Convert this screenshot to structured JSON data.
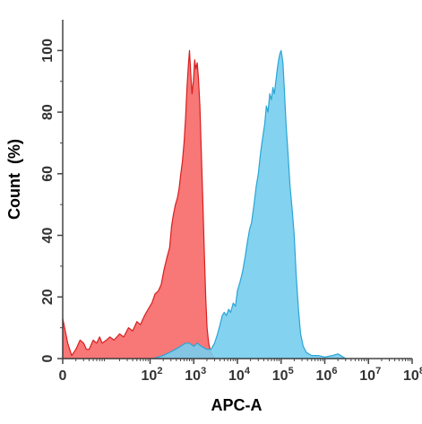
{
  "chart_data": {
    "type": "area",
    "title": "",
    "xlabel": "APC-A",
    "ylabel": "Count  (%)",
    "x_scale": "log",
    "xlim": [
      1,
      100000000
    ],
    "ylim": [
      0,
      110
    ],
    "x_ticks": [
      {
        "value": 1,
        "base": "0",
        "exp": ""
      },
      {
        "value": 100,
        "base": "10",
        "exp": "2"
      },
      {
        "value": 1000,
        "base": "10",
        "exp": "3"
      },
      {
        "value": 10000,
        "base": "10",
        "exp": "4"
      },
      {
        "value": 100000,
        "base": "10",
        "exp": "5"
      },
      {
        "value": 1000000,
        "base": "10",
        "exp": "6"
      },
      {
        "value": 10000000,
        "base": "10",
        "exp": "7"
      },
      {
        "value": 100000000,
        "base": "10",
        "exp": "8"
      }
    ],
    "y_ticks": [
      0,
      20,
      40,
      60,
      80,
      100
    ],
    "grid": false,
    "series": [
      {
        "color": "#f87070",
        "stroke": "#d91e1e",
        "points": [
          [
            1,
            13
          ],
          [
            1.3,
            5
          ],
          [
            1.6,
            1
          ],
          [
            2,
            3
          ],
          [
            2.5,
            6
          ],
          [
            3,
            5
          ],
          [
            3.5,
            3
          ],
          [
            4,
            3
          ],
          [
            5,
            6
          ],
          [
            6,
            5
          ],
          [
            7,
            7
          ],
          [
            8,
            5
          ],
          [
            10,
            6
          ],
          [
            12,
            7
          ],
          [
            15,
            6
          ],
          [
            20,
            8
          ],
          [
            25,
            7
          ],
          [
            32,
            10
          ],
          [
            40,
            9
          ],
          [
            50,
            12
          ],
          [
            60,
            11
          ],
          [
            75,
            14
          ],
          [
            90,
            16
          ],
          [
            110,
            18
          ],
          [
            130,
            21
          ],
          [
            155,
            22
          ],
          [
            180,
            24
          ],
          [
            210,
            29
          ],
          [
            245,
            33
          ],
          [
            280,
            36
          ],
          [
            310,
            43
          ],
          [
            345,
            47
          ],
          [
            380,
            50
          ],
          [
            420,
            52
          ],
          [
            460,
            55
          ],
          [
            505,
            60
          ],
          [
            550,
            64
          ],
          [
            600,
            70
          ],
          [
            650,
            78
          ],
          [
            700,
            88
          ],
          [
            750,
            95
          ],
          [
            800,
            100
          ],
          [
            850,
            93
          ],
          [
            910,
            86
          ],
          [
            980,
            90
          ],
          [
            1050,
            97
          ],
          [
            1120,
            94
          ],
          [
            1200,
            96
          ],
          [
            1280,
            91
          ],
          [
            1380,
            82
          ],
          [
            1500,
            66
          ],
          [
            1620,
            50
          ],
          [
            1750,
            34
          ],
          [
            1880,
            20
          ],
          [
            2020,
            10
          ],
          [
            2200,
            5
          ],
          [
            2450,
            2
          ],
          [
            2800,
            0.5
          ],
          [
            3200,
            0
          ]
        ]
      },
      {
        "color": "#75cdee",
        "stroke": "#2aa5d5",
        "points": [
          [
            120,
            0
          ],
          [
            200,
            1
          ],
          [
            280,
            2
          ],
          [
            380,
            3
          ],
          [
            500,
            4
          ],
          [
            650,
            5
          ],
          [
            800,
            5
          ],
          [
            1000,
            4
          ],
          [
            1200,
            5
          ],
          [
            1500,
            4
          ],
          [
            2000,
            3
          ],
          [
            2500,
            3
          ],
          [
            3000,
            5
          ],
          [
            3500,
            8
          ],
          [
            4000,
            11
          ],
          [
            4500,
            14
          ],
          [
            5000,
            15
          ],
          [
            5600,
            14
          ],
          [
            6300,
            16
          ],
          [
            7000,
            15
          ],
          [
            8000,
            18
          ],
          [
            9000,
            17
          ],
          [
            10000,
            22
          ],
          [
            11500,
            25
          ],
          [
            13000,
            28
          ],
          [
            15000,
            33
          ],
          [
            17000,
            38
          ],
          [
            19000,
            42
          ],
          [
            21000,
            44
          ],
          [
            24000,
            50
          ],
          [
            27000,
            56
          ],
          [
            30000,
            60
          ],
          [
            34000,
            67
          ],
          [
            38000,
            72
          ],
          [
            42000,
            76
          ],
          [
            46000,
            82
          ],
          [
            50000,
            80
          ],
          [
            55000,
            86
          ],
          [
            60000,
            84
          ],
          [
            65000,
            88
          ],
          [
            70000,
            86
          ],
          [
            76000,
            90
          ],
          [
            82000,
            94
          ],
          [
            88000,
            97
          ],
          [
            94000,
            99
          ],
          [
            100000,
            100
          ],
          [
            110000,
            96
          ],
          [
            120000,
            86
          ],
          [
            130000,
            76
          ],
          [
            145000,
            66
          ],
          [
            160000,
            56
          ],
          [
            180000,
            48
          ],
          [
            200000,
            40
          ],
          [
            220000,
            28
          ],
          [
            250000,
            16
          ],
          [
            280000,
            8
          ],
          [
            320000,
            4
          ],
          [
            380000,
            2
          ],
          [
            500000,
            1
          ],
          [
            700000,
            1
          ],
          [
            1000000,
            0.5
          ],
          [
            1500000,
            1
          ],
          [
            2000000,
            1.5
          ],
          [
            3000000,
            0
          ]
        ]
      }
    ]
  }
}
